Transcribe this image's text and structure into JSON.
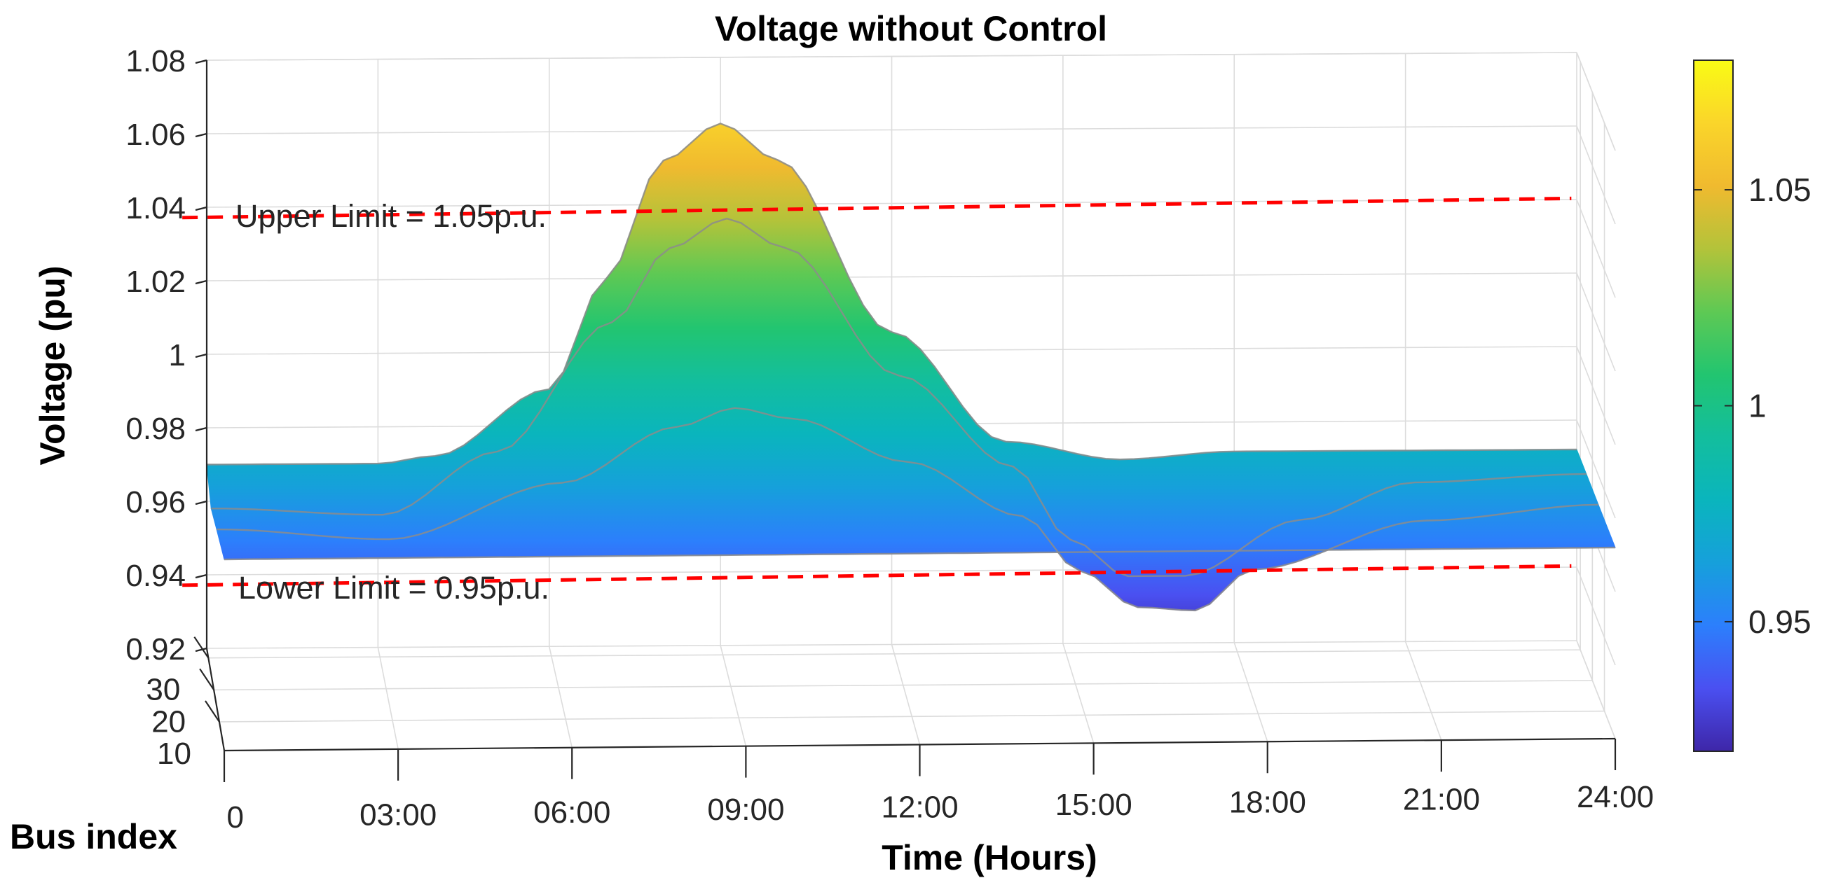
{
  "chart_data": {
    "type": "surface",
    "title": "Voltage without Control",
    "xlabel": "Time (Hours)",
    "ylabel": "Bus index",
    "zlabel": "Voltage (pu)",
    "x_ticks": [
      "0",
      "03:00",
      "06:00",
      "09:00",
      "12:00",
      "15:00",
      "18:00",
      "21:00",
      "24:00"
    ],
    "x_range_hours": [
      0,
      24
    ],
    "y_ticks": [
      "10",
      "20",
      "30"
    ],
    "z_ticks": [
      "0.92",
      "0.94",
      "0.96",
      "0.98",
      "1",
      "1.02",
      "1.04",
      "1.06",
      "1.08"
    ],
    "z_range": [
      0.92,
      1.08
    ],
    "colorbar": {
      "ticks": [
        "0.95",
        "1",
        "1.05"
      ],
      "range": [
        0.92,
        1.08
      ],
      "colormap": "parula",
      "colors": [
        "#3e26a8",
        "#4a50f1",
        "#2c7ffc",
        "#16a0db",
        "#0ab5bd",
        "#13be9d",
        "#22c570",
        "#5ec954",
        "#b3c33a",
        "#f0ba2f",
        "#fad52a",
        "#f9fb15"
      ]
    },
    "limits": [
      {
        "label": "Upper Limit = 1.05p.u.",
        "value": 1.05,
        "color": "#ff0000"
      },
      {
        "label": "Lower Limit = 0.95p.u.",
        "value": 0.95,
        "color": "#ff0000"
      }
    ],
    "series": [
      {
        "bus": 33,
        "time_hours": [
          0,
          3,
          4,
          6,
          7,
          8,
          9,
          10,
          12,
          14,
          16,
          18,
          21,
          24
        ],
        "voltage": [
          0.97,
          0.97,
          0.972,
          0.99,
          1.02,
          1.052,
          1.062,
          1.052,
          1.005,
          0.975,
          0.97,
          0.972,
          0.972,
          0.972
        ]
      },
      {
        "bus": 25,
        "time_hours": [
          0,
          3,
          5,
          7,
          8,
          9,
          10,
          12,
          14,
          15,
          16,
          17,
          19,
          21,
          24
        ],
        "voltage": [
          0.965,
          0.963,
          0.98,
          1.015,
          1.035,
          1.043,
          1.035,
          1.0,
          0.975,
          0.955,
          0.945,
          0.945,
          0.96,
          0.97,
          0.972
        ]
      },
      {
        "bus": 15,
        "time_hours": [
          0,
          3,
          6,
          8,
          9,
          10,
          12,
          14,
          15,
          16,
          17,
          18,
          21,
          24
        ],
        "voltage": [
          0.968,
          0.965,
          0.98,
          0.995,
          1.0,
          0.997,
          0.985,
          0.97,
          0.955,
          0.945,
          0.944,
          0.955,
          0.968,
          0.972
        ]
      },
      {
        "bus": 1,
        "time_hours": [
          0,
          3,
          6,
          9,
          12,
          15,
          18,
          21,
          24
        ],
        "voltage": [
          0.972,
          0.972,
          0.972,
          0.972,
          0.972,
          0.972,
          0.972,
          0.972,
          0.972
        ]
      }
    ]
  }
}
